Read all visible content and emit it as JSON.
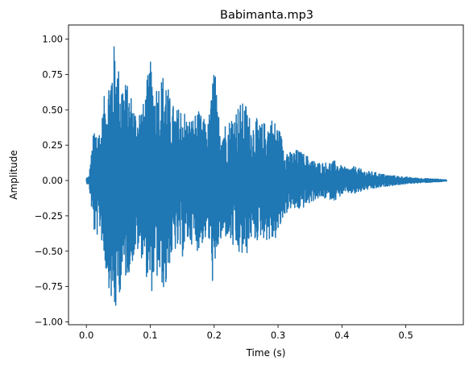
{
  "chart_data": {
    "type": "line",
    "title": "Babimanta.mp3",
    "xlabel": "Time (s)",
    "ylabel": "Amplitude",
    "xlim": [
      -0.028,
      0.59
    ],
    "ylim": [
      -1.02,
      1.1
    ],
    "xticks": [
      {
        "value": 0.0,
        "label": "0.0"
      },
      {
        "value": 0.1,
        "label": "0.1"
      },
      {
        "value": 0.2,
        "label": "0.2"
      },
      {
        "value": 0.3,
        "label": "0.3"
      },
      {
        "value": 0.4,
        "label": "0.4"
      },
      {
        "value": 0.5,
        "label": "0.5"
      }
    ],
    "yticks": [
      {
        "value": -1.0,
        "label": "−1.00"
      },
      {
        "value": -0.75,
        "label": "−0.75"
      },
      {
        "value": -0.5,
        "label": "−0.50"
      },
      {
        "value": -0.25,
        "label": "−0.25"
      },
      {
        "value": 0.0,
        "label": "0.00"
      },
      {
        "value": 0.25,
        "label": "0.25"
      },
      {
        "value": 0.5,
        "label": "0.50"
      },
      {
        "value": 0.75,
        "label": "0.75"
      },
      {
        "value": 1.0,
        "label": "1.00"
      }
    ],
    "grid": false,
    "series": [
      {
        "color": "#1f77b4",
        "duration": 0.564,
        "envelope": [
          [
            0.0,
            0.02
          ],
          [
            0.004,
            0.03
          ],
          [
            0.008,
            0.2
          ],
          [
            0.012,
            0.38
          ],
          [
            0.018,
            0.4
          ],
          [
            0.022,
            0.35
          ],
          [
            0.028,
            0.6
          ],
          [
            0.034,
            0.72
          ],
          [
            0.04,
            0.9
          ],
          [
            0.045,
            1.0
          ],
          [
            0.05,
            0.82
          ],
          [
            0.056,
            0.75
          ],
          [
            0.062,
            0.7
          ],
          [
            0.07,
            0.62
          ],
          [
            0.078,
            0.5
          ],
          [
            0.085,
            0.55
          ],
          [
            0.09,
            0.55
          ],
          [
            0.095,
            0.72
          ],
          [
            0.1,
            0.85
          ],
          [
            0.106,
            0.7
          ],
          [
            0.112,
            0.72
          ],
          [
            0.118,
            0.75
          ],
          [
            0.124,
            0.8
          ],
          [
            0.13,
            0.6
          ],
          [
            0.14,
            0.5
          ],
          [
            0.15,
            0.55
          ],
          [
            0.158,
            0.45
          ],
          [
            0.166,
            0.45
          ],
          [
            0.174,
            0.5
          ],
          [
            0.182,
            0.45
          ],
          [
            0.19,
            0.4
          ],
          [
            0.196,
            0.62
          ],
          [
            0.2,
            0.92
          ],
          [
            0.205,
            0.5
          ],
          [
            0.212,
            0.45
          ],
          [
            0.22,
            0.4
          ],
          [
            0.23,
            0.5
          ],
          [
            0.24,
            0.55
          ],
          [
            0.25,
            0.55
          ],
          [
            0.258,
            0.42
          ],
          [
            0.265,
            0.45
          ],
          [
            0.272,
            0.4
          ],
          [
            0.28,
            0.42
          ],
          [
            0.29,
            0.45
          ],
          [
            0.3,
            0.4
          ],
          [
            0.31,
            0.25
          ],
          [
            0.32,
            0.2
          ],
          [
            0.33,
            0.22
          ],
          [
            0.345,
            0.18
          ],
          [
            0.36,
            0.13
          ],
          [
            0.375,
            0.13
          ],
          [
            0.39,
            0.14
          ],
          [
            0.4,
            0.1
          ],
          [
            0.41,
            0.09
          ],
          [
            0.42,
            0.1
          ],
          [
            0.435,
            0.07
          ],
          [
            0.45,
            0.06
          ],
          [
            0.47,
            0.04
          ],
          [
            0.49,
            0.03
          ],
          [
            0.51,
            0.02
          ],
          [
            0.53,
            0.015
          ],
          [
            0.55,
            0.01
          ],
          [
            0.564,
            0.005
          ]
        ]
      }
    ]
  }
}
